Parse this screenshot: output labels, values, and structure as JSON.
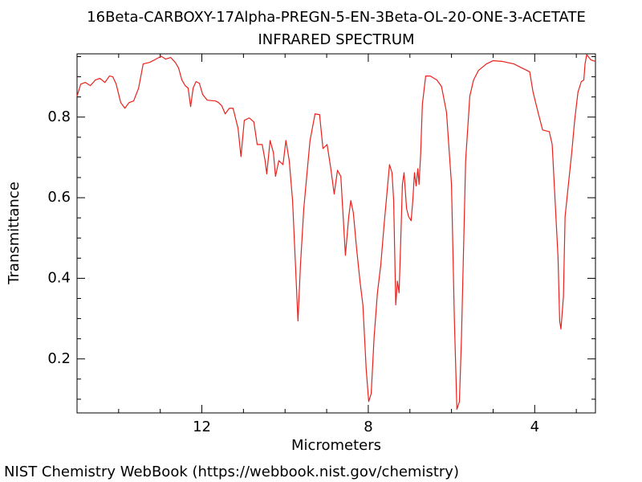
{
  "chart_data": {
    "type": "line",
    "title": "16Beta-CARBOXY-17Alpha-PREGN-5-EN-3Beta-OL-20-ONE-3-ACETATE",
    "subtitle": "INFRARED SPECTRUM",
    "x_label": "Micrometers",
    "y_label": "Transmittance",
    "color": "#e8211c",
    "xlim": [
      15,
      2.54
    ],
    "ylim": [
      0.066,
      0.957
    ],
    "xticks": [
      12,
      8,
      4
    ],
    "xticks_minor": [
      15,
      14,
      13,
      11,
      10,
      9,
      7,
      6,
      5,
      3
    ],
    "yticks": [
      0.2,
      0.4,
      0.6,
      0.8
    ],
    "yticks_minor": [
      0.1,
      0.15,
      0.25,
      0.3,
      0.35,
      0.45,
      0.5,
      0.55,
      0.65,
      0.7,
      0.75,
      0.85,
      0.9,
      0.95
    ],
    "x": [
      15,
      14.91,
      14.8,
      14.68,
      14.56,
      14.45,
      14.33,
      14.22,
      14.14,
      14.06,
      13.95,
      13.85,
      13.75,
      13.64,
      13.52,
      13.41,
      13.25,
      13.1,
      12.98,
      12.87,
      12.75,
      12.64,
      12.56,
      12.48,
      12.4,
      12.33,
      12.27,
      12.21,
      12.14,
      12.06,
      11.98,
      11.87,
      11.67,
      11.6,
      11.52,
      11.44,
      11.34,
      11.25,
      11.13,
      11.06,
      10.98,
      10.86,
      10.75,
      10.67,
      10.55,
      10.48,
      10.44,
      10.36,
      10.28,
      10.23,
      10.15,
      10.05,
      9.98,
      9.9,
      9.82,
      9.75,
      9.69,
      9.63,
      9.55,
      9.48,
      9.4,
      9.28,
      9.17,
      9.09,
      8.99,
      8.9,
      8.82,
      8.74,
      8.66,
      8.55,
      8.47,
      8.42,
      8.36,
      8.28,
      8.2,
      8.13,
      8.05,
      7.99,
      7.93,
      7.86,
      7.78,
      7.7,
      7.62,
      7.55,
      7.49,
      7.43,
      7.39,
      7.34,
      7.3,
      7.26,
      7.22,
      7.18,
      7.14,
      7.08,
      7.03,
      6.97,
      6.93,
      6.89,
      6.85,
      6.81,
      6.78,
      6.74,
      6.7,
      6.62,
      6.51,
      6.35,
      6.24,
      6.12,
      6.0,
      5.93,
      5.87,
      5.81,
      5.76,
      5.66,
      5.56,
      5.47,
      5.35,
      5.16,
      5.0,
      4.77,
      4.5,
      4.31,
      4.19,
      4.12,
      4.04,
      3.92,
      3.81,
      3.65,
      3.58,
      3.5,
      3.44,
      3.4,
      3.37,
      3.31,
      3.27,
      3.19,
      3.11,
      3.04,
      2.96,
      2.88,
      2.82,
      2.79,
      2.75,
      2.65,
      2.54
    ],
    "values": [
      0.852,
      0.882,
      0.886,
      0.878,
      0.892,
      0.896,
      0.886,
      0.902,
      0.9,
      0.882,
      0.836,
      0.822,
      0.836,
      0.84,
      0.872,
      0.932,
      0.936,
      0.944,
      0.951,
      0.944,
      0.948,
      0.936,
      0.922,
      0.892,
      0.878,
      0.872,
      0.826,
      0.872,
      0.888,
      0.884,
      0.856,
      0.842,
      0.84,
      0.836,
      0.828,
      0.808,
      0.822,
      0.822,
      0.772,
      0.702,
      0.792,
      0.798,
      0.788,
      0.732,
      0.732,
      0.692,
      0.659,
      0.742,
      0.712,
      0.653,
      0.692,
      0.682,
      0.742,
      0.692,
      0.593,
      0.433,
      0.294,
      0.433,
      0.573,
      0.653,
      0.742,
      0.808,
      0.806,
      0.722,
      0.732,
      0.672,
      0.609,
      0.668,
      0.653,
      0.457,
      0.553,
      0.593,
      0.563,
      0.473,
      0.393,
      0.334,
      0.174,
      0.094,
      0.114,
      0.254,
      0.364,
      0.433,
      0.533,
      0.613,
      0.682,
      0.662,
      0.593,
      0.334,
      0.393,
      0.364,
      0.493,
      0.633,
      0.662,
      0.573,
      0.553,
      0.543,
      0.593,
      0.662,
      0.629,
      0.672,
      0.633,
      0.712,
      0.832,
      0.902,
      0.902,
      0.892,
      0.876,
      0.812,
      0.633,
      0.294,
      0.075,
      0.094,
      0.254,
      0.692,
      0.852,
      0.892,
      0.916,
      0.932,
      0.94,
      0.938,
      0.932,
      0.922,
      0.916,
      0.912,
      0.862,
      0.812,
      0.768,
      0.764,
      0.732,
      0.573,
      0.453,
      0.294,
      0.274,
      0.354,
      0.553,
      0.633,
      0.712,
      0.792,
      0.862,
      0.888,
      0.892,
      0.932,
      0.955,
      0.942,
      0.938
    ]
  },
  "footer": "NIST Chemistry WebBook (https://webbook.nist.gov/chemistry)"
}
